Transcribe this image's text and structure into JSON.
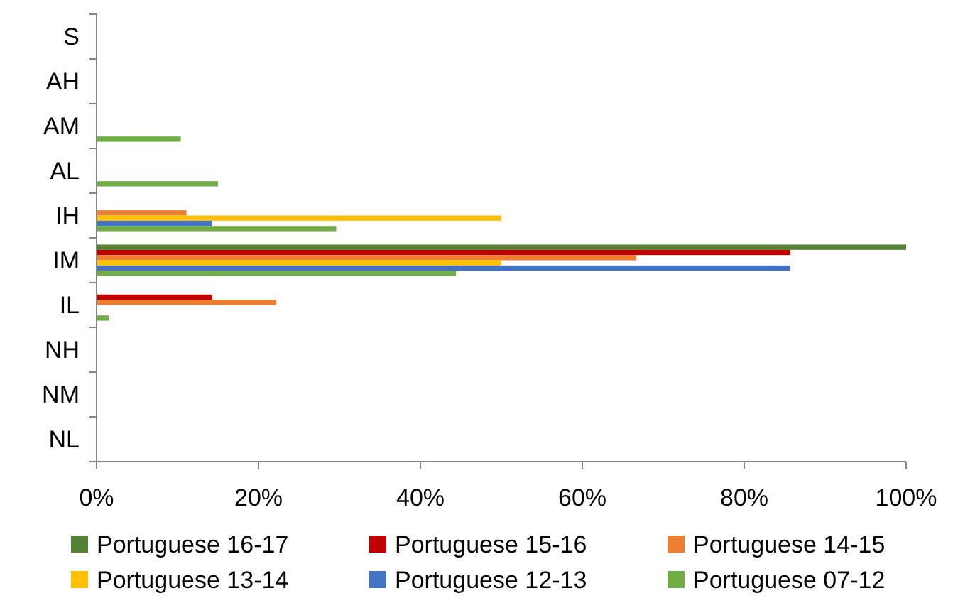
{
  "chart_data": {
    "type": "bar",
    "orientation": "horizontal",
    "categories": [
      "S",
      "AH",
      "AM",
      "AL",
      "IH",
      "IM",
      "IL",
      "NH",
      "NM",
      "NL"
    ],
    "series": [
      {
        "name": "Portuguese 16-17",
        "color": "#548235",
        "values": [
          null,
          null,
          null,
          null,
          null,
          100,
          null,
          null,
          null,
          null
        ]
      },
      {
        "name": "Portuguese 15-16",
        "color": "#c00000",
        "values": [
          null,
          null,
          null,
          null,
          null,
          85.7,
          14.3,
          null,
          null,
          null
        ]
      },
      {
        "name": "Portuguese 14-15",
        "color": "#ed7d31",
        "values": [
          null,
          null,
          null,
          null,
          11.1,
          66.7,
          22.2,
          null,
          null,
          null
        ]
      },
      {
        "name": "Portuguese 13-14",
        "color": "#ffc000",
        "values": [
          null,
          null,
          null,
          null,
          50,
          50,
          null,
          null,
          null,
          null
        ]
      },
      {
        "name": "Portuguese 12-13",
        "color": "#4472c4",
        "values": [
          null,
          null,
          null,
          null,
          14.3,
          85.7,
          null,
          null,
          null,
          null
        ]
      },
      {
        "name": "Portuguese 07-12",
        "color": "#70ad47",
        "values": [
          null,
          null,
          10.4,
          15,
          29.6,
          44.4,
          1.5,
          null,
          null,
          null
        ]
      }
    ],
    "xlim": [
      0,
      100
    ],
    "xticks": [
      {
        "value": 0,
        "label": "0%"
      },
      {
        "value": 20,
        "label": "20%"
      },
      {
        "value": 40,
        "label": "40%"
      },
      {
        "value": 60,
        "label": "60%"
      },
      {
        "value": 80,
        "label": "80%"
      },
      {
        "value": 100,
        "label": "100%"
      }
    ],
    "grid": false,
    "legend": "bottom"
  }
}
